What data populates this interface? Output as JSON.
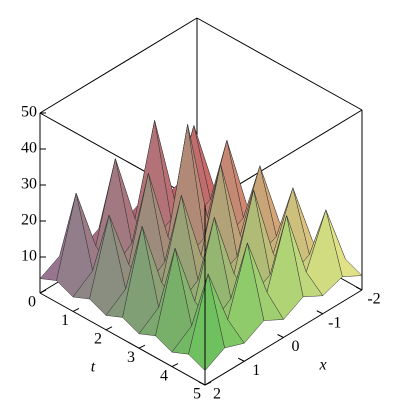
{
  "chart_data": {
    "type": "surface3d",
    "x_label": "x",
    "t_label": "t",
    "t": [
      0,
      0.5,
      1,
      1.5,
      2,
      2.5,
      3,
      3.5,
      4,
      4.5,
      5
    ],
    "x": [
      -2,
      -1.5,
      -1,
      -0.5,
      0,
      0.5,
      1,
      1.5,
      2
    ],
    "z": [
      [
        4,
        7,
        5,
        8,
        5,
        8,
        5,
        7,
        4
      ],
      [
        6,
        26,
        9,
        34,
        10,
        30,
        9,
        27,
        6
      ],
      [
        4,
        8,
        5,
        9,
        6,
        9,
        5,
        8,
        4
      ],
      [
        6,
        27,
        9,
        38,
        10,
        31,
        9,
        26,
        6
      ],
      [
        4,
        8,
        5,
        9,
        6,
        9,
        5,
        8,
        4
      ],
      [
        6,
        25,
        9,
        32,
        10,
        30,
        9,
        28,
        6
      ],
      [
        4,
        8,
        5,
        9,
        6,
        9,
        5,
        8,
        4
      ],
      [
        6,
        24,
        9,
        30,
        10,
        29,
        9,
        27,
        6
      ],
      [
        4,
        8,
        5,
        9,
        6,
        9,
        5,
        8,
        4
      ],
      [
        6,
        23,
        9,
        28,
        10,
        27,
        9,
        25,
        6
      ],
      [
        4,
        7,
        5,
        8,
        5,
        8,
        5,
        7,
        4
      ]
    ],
    "tlim": [
      0,
      5
    ],
    "xlim": [
      -2,
      2
    ],
    "zlim": [
      0,
      50
    ],
    "tticks": [
      0,
      1,
      2,
      3,
      4,
      5
    ],
    "xticks": [
      -2,
      -1,
      0,
      1,
      2
    ],
    "zticks": [
      10,
      20,
      30,
      40,
      50
    ]
  }
}
